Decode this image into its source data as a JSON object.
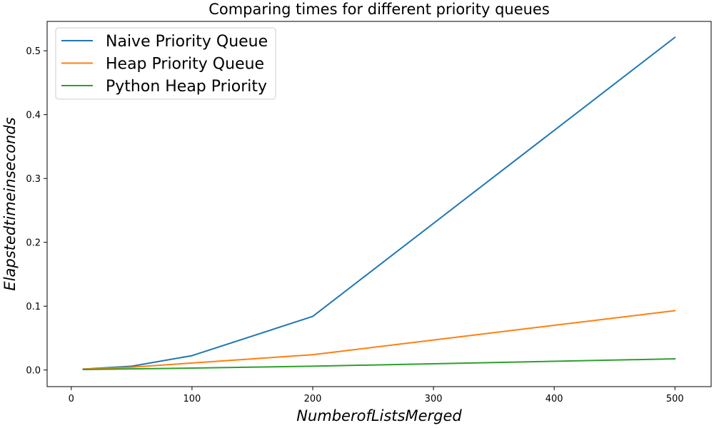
{
  "chart_data": {
    "type": "line",
    "title": "Comparing times for different priority queues",
    "xlabel": "NumberofListsMerged",
    "ylabel": "Elapstedtimeinseconds",
    "xlim": [
      -20,
      530
    ],
    "ylim": [
      -0.026,
      0.546
    ],
    "xticks": [
      0,
      100,
      200,
      300,
      400,
      500
    ],
    "xtick_labels": [
      "0",
      "100",
      "200",
      "300",
      "400",
      "500"
    ],
    "yticks": [
      0.0,
      0.1,
      0.2,
      0.3,
      0.4,
      0.5
    ],
    "ytick_labels": [
      "0.0",
      "0.1",
      "0.2",
      "0.3",
      "0.4",
      "0.5"
    ],
    "grid": false,
    "legend_position": "top-left",
    "x": [
      10,
      50,
      100,
      200,
      500
    ],
    "series": [
      {
        "name": "Naive Priority Queue",
        "color": "#1f77b4",
        "values": [
          0.0015,
          0.006,
          0.0225,
          0.084,
          0.521
        ]
      },
      {
        "name": "Heap Priority Queue",
        "color": "#ff7f0e",
        "values": [
          0.0015,
          0.0045,
          0.011,
          0.024,
          0.093
        ]
      },
      {
        "name": "Python Heap Priority",
        "color": "#2ca02c",
        "values": [
          0.0008,
          0.0018,
          0.003,
          0.006,
          0.0175
        ]
      }
    ]
  }
}
